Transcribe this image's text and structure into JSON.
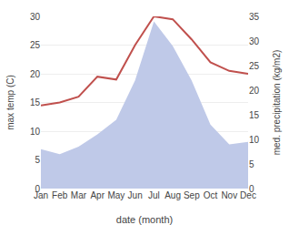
{
  "chart_data": {
    "type": "line",
    "xlabel": "date (month)",
    "ylabel": "max temp (C)",
    "y2label": "med. precipitation (kg/m2)",
    "categories": [
      "Jan",
      "Feb",
      "Mar",
      "Apr",
      "May",
      "Jun",
      "Jul",
      "Aug",
      "Sep",
      "Oct",
      "Nov",
      "Dec"
    ],
    "series": [
      {
        "type": "area",
        "axis": "y2",
        "color": "#bfc9e8",
        "values": [
          8.0,
          7.0,
          8.5,
          11.0,
          14.0,
          22.0,
          34.0,
          29.0,
          22.0,
          13.0,
          9.0,
          9.5
        ]
      },
      {
        "type": "line",
        "color": "#c0504d",
        "values": [
          14.5,
          15.0,
          16.0,
          19.5,
          19.0,
          25.0,
          30.0,
          29.5,
          26.0,
          22.0,
          20.5,
          20.0
        ]
      }
    ],
    "ylim": [
      0,
      30
    ],
    "yticks": [
      0,
      5,
      10,
      15,
      20,
      25,
      30
    ],
    "y2lim": [
      0,
      35
    ],
    "y2ticks": [
      0,
      5,
      10,
      15,
      20,
      25,
      30,
      35
    ],
    "grid": true
  }
}
